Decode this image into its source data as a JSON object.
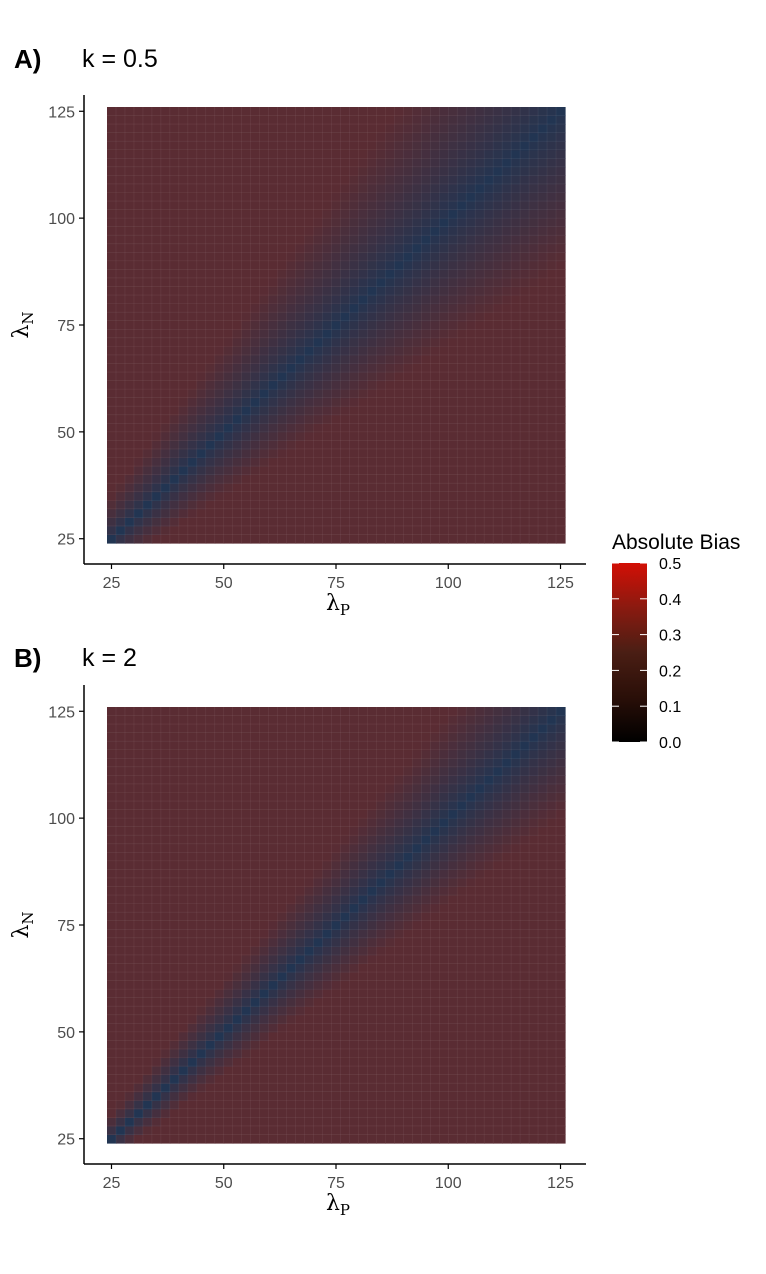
{
  "chart_data": [
    {
      "type": "heatmap",
      "panel_tag": "A)",
      "title": "k = 0.5",
      "k": 0.5,
      "xlabel": "λ",
      "xlabel_sub": "P",
      "ylabel": "λ",
      "ylabel_sub": "N",
      "x_range": [
        25,
        125
      ],
      "y_range": [
        25,
        125
      ],
      "x_ticks": [
        25,
        50,
        75,
        100,
        125
      ],
      "y_ticks": [
        25,
        50,
        75,
        100,
        125
      ],
      "grid_resolution": 2,
      "value_description": "Absolute bias; low (~0.15) along diagonal λN≈λP, rising to ~0.25 away from it",
      "min_value": 0.14,
      "max_value": 0.25
    },
    {
      "type": "heatmap",
      "panel_tag": "B)",
      "title": "k = 2",
      "k": 2,
      "xlabel": "λ",
      "xlabel_sub": "P",
      "ylabel": "λ",
      "ylabel_sub": "N",
      "x_range": [
        25,
        125
      ],
      "y_range": [
        25,
        125
      ],
      "x_ticks": [
        25,
        50,
        75,
        100,
        125
      ],
      "y_ticks": [
        25,
        50,
        75,
        100,
        125
      ],
      "grid_resolution": 2,
      "value_description": "Absolute bias; low (~0.15) along diagonal λN≈λP, rising to ~0.26 away from it",
      "min_value": 0.14,
      "max_value": 0.26
    }
  ],
  "legend": {
    "title": "Absolute Bias",
    "ticks": [
      "0.5",
      "0.4",
      "0.3",
      "0.2",
      "0.1",
      "0.0"
    ],
    "tick_values": [
      0.5,
      0.4,
      0.3,
      0.2,
      0.1,
      0.0
    ],
    "range": [
      0,
      0.5
    ],
    "low_color": "#000000",
    "mid_color": "#2c3e50",
    "high_color": "#cc1100"
  },
  "colors": {
    "axis": "#000000",
    "tick_text": "#4d4d4d",
    "diagonal_color": "#223552",
    "off_diagonal_color": "#5a2c33",
    "grid_line": "#ffffff"
  }
}
